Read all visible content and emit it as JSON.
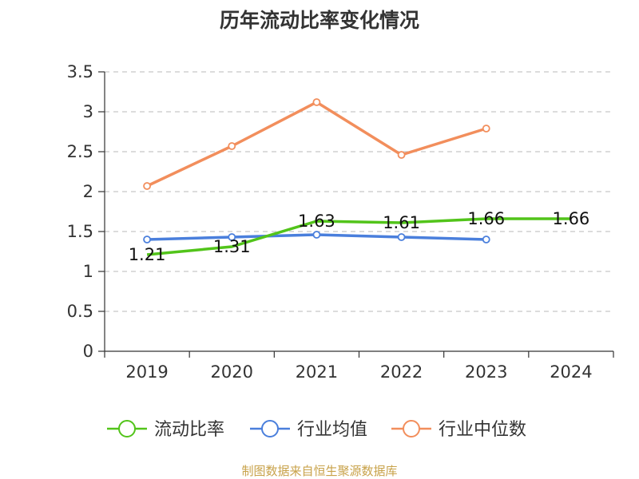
{
  "chart_data": {
    "type": "line",
    "title": "历年流动比率变化情况",
    "categories": [
      "2019",
      "2020",
      "2021",
      "2022",
      "2023",
      "2024"
    ],
    "series": [
      {
        "name": "流动比率",
        "color": "#52c41a",
        "values": [
          1.21,
          1.31,
          1.63,
          1.61,
          1.66,
          1.66
        ],
        "show_labels": true,
        "show_markers": false
      },
      {
        "name": "行业均值",
        "color": "#4a7fdc",
        "values": [
          1.4,
          1.43,
          1.46,
          1.43,
          1.4,
          null
        ],
        "show_labels": false,
        "show_markers": true
      },
      {
        "name": "行业中位数",
        "color": "#f28e5c",
        "values": [
          2.07,
          2.57,
          3.12,
          2.46,
          2.79,
          null
        ],
        "show_labels": false,
        "show_markers": true
      }
    ],
    "ylim": [
      0,
      3.5
    ],
    "yticks": [
      0,
      0.5,
      1,
      1.5,
      2,
      2.5,
      3,
      3.5
    ],
    "ytick_labels": [
      "0",
      "0.5",
      "1",
      "1.5",
      "2",
      "2.5",
      "3",
      "3.5"
    ],
    "grid": "horizontal-dashed",
    "legend_position": "bottom"
  },
  "source": "制图数据来自恒生聚源数据库"
}
